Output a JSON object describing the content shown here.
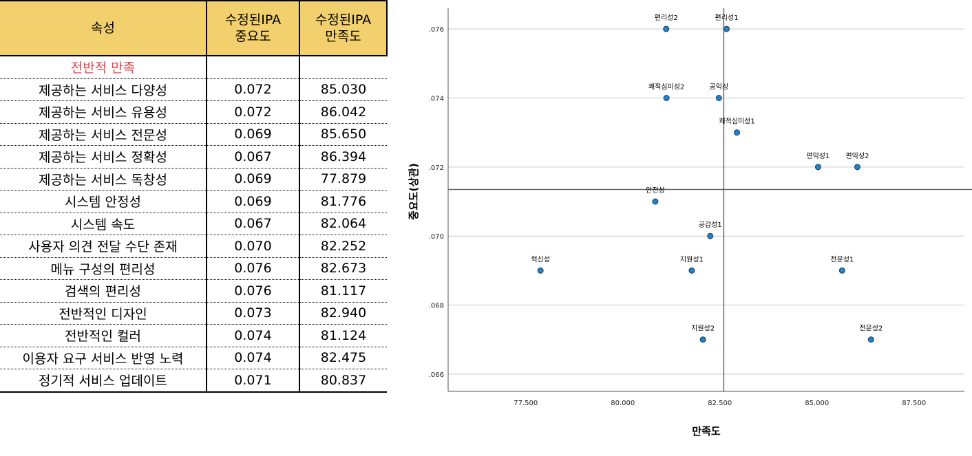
{
  "table": {
    "headers": [
      "속성",
      "수정된IPA\n중요도",
      "수정된IPA\n만족도"
    ],
    "section_label": "전반적 만족",
    "rows": [
      [
        "제공하는 서비스 다양성",
        "0.072",
        "85.030"
      ],
      [
        "제공하는 서비스 유용성",
        "0.072",
        "86.042"
      ],
      [
        "제공하는 서비스 전문성",
        "0.069",
        "85.650"
      ],
      [
        "제공하는 서비스 정확성",
        "0.067",
        "86.394"
      ],
      [
        "제공하는 서비스 독창성",
        "0.069",
        "77.879"
      ],
      [
        "시스템 안정성",
        "0.069",
        "81.776"
      ],
      [
        "시스템 속도",
        "0.067",
        "82.064"
      ],
      [
        "사용자 의견 전달 수단 존재",
        "0.070",
        "82.252"
      ],
      [
        "메뉴 구성의 편리성",
        "0.076",
        "82.673"
      ],
      [
        "검색의 편리성",
        "0.076",
        "81.117"
      ],
      [
        "전반적인 디자인",
        "0.073",
        "82.940"
      ],
      [
        "전반적인 컬러",
        "0.074",
        "81.124"
      ],
      [
        "이용자 요구 서비스 반영 노력",
        "0.074",
        "82.475"
      ],
      [
        "정기적 서비스 업데이트",
        "0.071",
        "80.837"
      ]
    ]
  },
  "chart_data": {
    "type": "scatter",
    "title": "",
    "xlabel": "만족도",
    "ylabel": "중요도(상관)",
    "xlim": [
      75.5,
      88.8
    ],
    "ylim": [
      0.0655,
      0.0766
    ],
    "x_ticks": [
      77.5,
      80.0,
      82.5,
      85.0,
      87.5
    ],
    "x_tick_labels": [
      "77.500",
      "80.000",
      "82.500",
      "85.000",
      "87.500"
    ],
    "y_ticks": [
      0.066,
      0.068,
      0.07,
      0.072,
      0.074,
      0.076
    ],
    "y_tick_labels": [
      ".066",
      ".068",
      ".070",
      ".072",
      ".074",
      ".076"
    ],
    "grid": "horizontal",
    "reference_lines": {
      "x": 82.6,
      "y": 0.07135
    },
    "point_color": "#1f83c9",
    "points": [
      {
        "label": "편리성2",
        "x": 81.117,
        "y": 0.076
      },
      {
        "label": "편리성1",
        "x": 82.673,
        "y": 0.076
      },
      {
        "label": "쾌적심미성2",
        "x": 81.124,
        "y": 0.074
      },
      {
        "label": "공익성",
        "x": 82.475,
        "y": 0.074
      },
      {
        "label": "쾌적심미성1",
        "x": 82.94,
        "y": 0.073
      },
      {
        "label": "편익성1",
        "x": 85.03,
        "y": 0.072
      },
      {
        "label": "편익성2",
        "x": 86.042,
        "y": 0.072
      },
      {
        "label": "안전성",
        "x": 80.837,
        "y": 0.071
      },
      {
        "label": "공감성1",
        "x": 82.252,
        "y": 0.07
      },
      {
        "label": "혁신성",
        "x": 77.879,
        "y": 0.069
      },
      {
        "label": "지원성1",
        "x": 81.776,
        "y": 0.069
      },
      {
        "label": "전문성1",
        "x": 85.65,
        "y": 0.069
      },
      {
        "label": "지원성2",
        "x": 82.064,
        "y": 0.067
      },
      {
        "label": "전문성2",
        "x": 86.394,
        "y": 0.067
      }
    ]
  }
}
